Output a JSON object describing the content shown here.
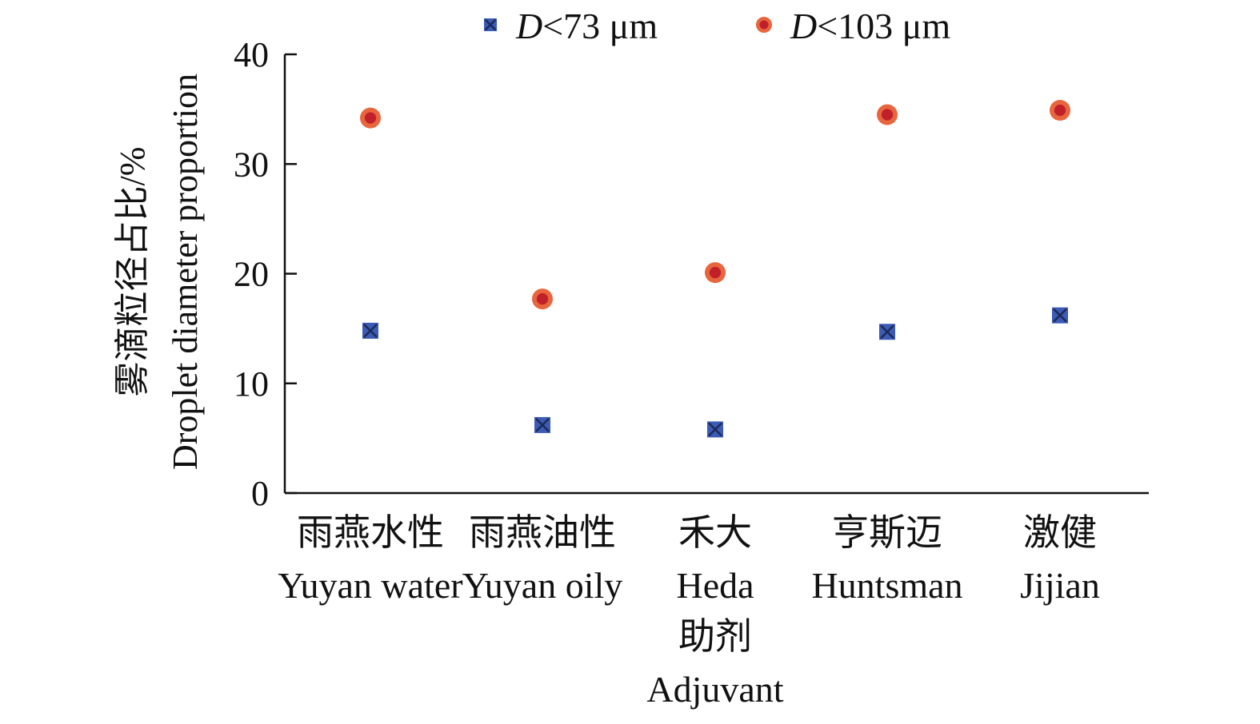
{
  "chart_data": {
    "type": "scatter",
    "title": "",
    "categories": [
      {
        "zh": "雨燕水性",
        "en": "Yuyan water"
      },
      {
        "zh": "雨燕油性",
        "en": "Yuyan oily"
      },
      {
        "zh": "禾大",
        "en": "Heda"
      },
      {
        "zh": "亨斯迈",
        "en": "Huntsman"
      },
      {
        "zh": "激健",
        "en": "Jijian"
      }
    ],
    "series": [
      {
        "name_italic": "D",
        "name_rest": "<73 μm",
        "marker": "square-x",
        "color": "#3b5bb5",
        "values": [
          14.8,
          6.2,
          5.8,
          14.7,
          16.2
        ]
      },
      {
        "name_italic": "D",
        "name_rest": "<103 μm",
        "marker": "circle",
        "color": "#e8663d",
        "inner_color": "#c0202a",
        "values": [
          34.2,
          17.7,
          20.1,
          34.5,
          34.9
        ]
      }
    ],
    "ylim": [
      0,
      40
    ],
    "yticks": [
      0,
      10,
      20,
      30,
      40
    ],
    "ylabel_zh": "雾滴粒径占比/%",
    "ylabel_en": "Droplet diameter proportion",
    "xlabel_zh": "助剂",
    "xlabel_en": "Adjuvant",
    "legend_position": "top",
    "grid": false
  }
}
